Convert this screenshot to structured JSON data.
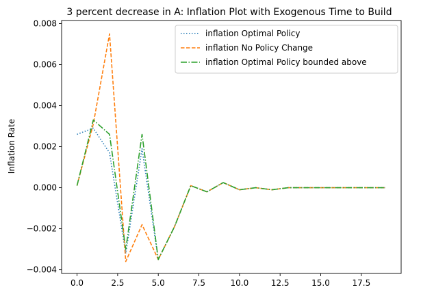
{
  "chart_data": {
    "type": "line",
    "title": "3 percent decrease in A: Inflation Plot with Exogenous Time to Build",
    "xlabel": "",
    "ylabel": "Inflation Rate",
    "xlim": [
      -0.95,
      19.95
    ],
    "ylim": [
      -0.00418,
      0.00815
    ],
    "x_ticks": [
      0,
      2.5,
      5,
      7.5,
      10,
      12.5,
      15,
      17.5
    ],
    "x_tick_labels": [
      "0.0",
      "2.5",
      "5.0",
      "7.5",
      "10.0",
      "12.5",
      "15.0",
      "17.5"
    ],
    "y_ticks": [
      -0.004,
      -0.002,
      0.0,
      0.002,
      0.004,
      0.006,
      0.008
    ],
    "y_tick_labels": [
      "−0.004",
      "−0.002",
      "0.000",
      "0.002",
      "0.004",
      "0.006",
      "0.008"
    ],
    "grid": false,
    "legend_position": "top-right",
    "x": [
      0,
      1,
      2,
      3,
      4,
      5,
      6,
      7,
      8,
      9,
      10,
      11,
      12,
      13,
      14,
      15,
      16,
      17,
      18,
      19
    ],
    "series": [
      {
        "name": "inflation Optimal Policy",
        "color": "#1f77b4",
        "dash": "dotted",
        "values": [
          0.0026,
          0.0029,
          0.0017,
          -0.0032,
          0.0019,
          -0.0035,
          -0.0019,
          0.0001,
          -0.0002,
          0.00025,
          -0.0001,
          0.0,
          -0.0001,
          0.0,
          0.0,
          0.0,
          0.0,
          0.0,
          0.0,
          0.0
        ]
      },
      {
        "name": "inflation No Policy Change",
        "color": "#ff7f0e",
        "dash": "dashed",
        "values": [
          0.0001,
          0.0031,
          0.0075,
          -0.0036,
          -0.0018,
          -0.0035,
          -0.0019,
          0.0001,
          -0.0002,
          0.00025,
          -0.0001,
          0.0,
          -0.0001,
          0.0,
          0.0,
          0.0,
          0.0,
          0.0,
          0.0,
          0.0
        ]
      },
      {
        "name": "inflation Optimal Policy bounded above",
        "color": "#2ca02c",
        "dash": "dashdot",
        "values": [
          0.0001,
          0.0033,
          0.0026,
          -0.003,
          0.0026,
          -0.0035,
          -0.0019,
          0.0001,
          -0.0002,
          0.00025,
          -0.0001,
          0.0,
          -0.0001,
          0.0,
          0.0,
          0.0,
          0.0,
          0.0,
          0.0,
          0.0
        ]
      }
    ]
  }
}
